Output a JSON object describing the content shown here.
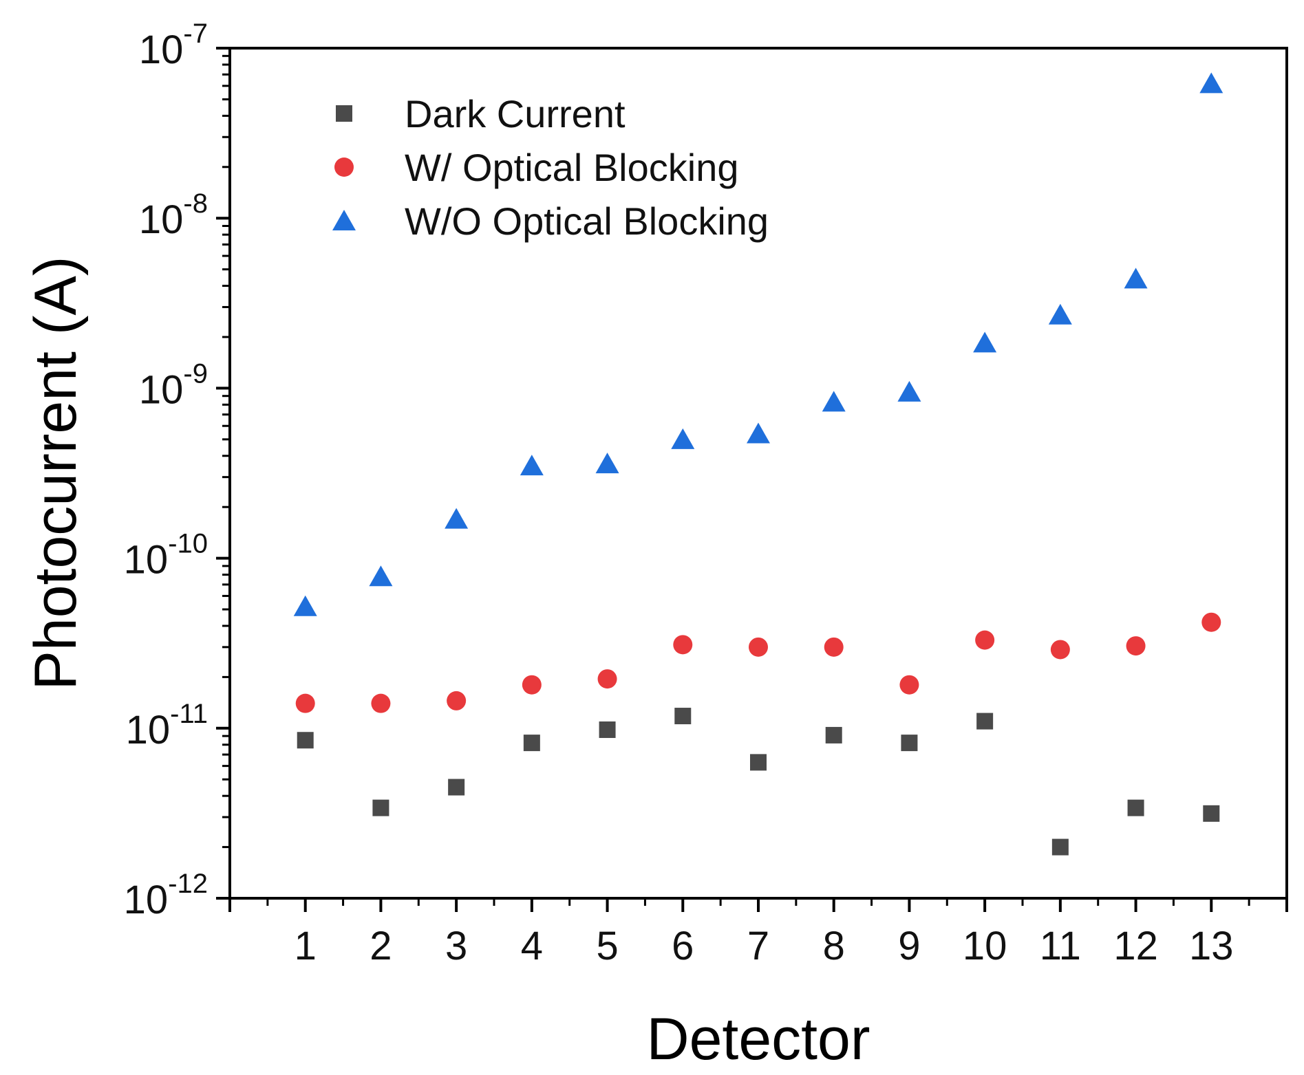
{
  "chart_data": {
    "type": "scatter",
    "title": "",
    "xlabel": "Detector",
    "ylabel": "Photocurrent (A)",
    "yscale": "log",
    "ylim": [
      1e-12,
      1e-07
    ],
    "xlim": [
      0,
      14
    ],
    "x": [
      1,
      2,
      3,
      4,
      5,
      6,
      7,
      8,
      9,
      10,
      11,
      12,
      13
    ],
    "x_tick_labels": [
      "1",
      "2",
      "3",
      "4",
      "5",
      "6",
      "7",
      "8",
      "9",
      "10",
      "11",
      "12",
      "13"
    ],
    "y_ticks": [
      {
        "value": 1e-12,
        "base": "10",
        "exp": "-12"
      },
      {
        "value": 1e-11,
        "base": "10",
        "exp": "-11"
      },
      {
        "value": 1e-10,
        "base": "10",
        "exp": "-10"
      },
      {
        "value": 1e-09,
        "base": "10",
        "exp": "-9"
      },
      {
        "value": 1e-08,
        "base": "10",
        "exp": "-8"
      },
      {
        "value": 1e-07,
        "base": "10",
        "exp": "-7"
      }
    ],
    "legend_position": "top-left",
    "series": [
      {
        "name": "Dark Current",
        "marker": "square",
        "color": "#4a4a4a",
        "values": [
          8.5e-12,
          3.4e-12,
          4.5e-12,
          8.2e-12,
          9.8e-12,
          1.18e-11,
          6.3e-12,
          9.1e-12,
          8.2e-12,
          1.1e-11,
          2e-12,
          3.4e-12,
          3.15e-12
        ]
      },
      {
        "name": "W/ Optical Blocking",
        "marker": "circle",
        "color": "#e8393c",
        "values": [
          1.4e-11,
          1.4e-11,
          1.45e-11,
          1.8e-11,
          1.95e-11,
          3.1e-11,
          3e-11,
          3e-11,
          1.8e-11,
          3.3e-11,
          2.9e-11,
          3.05e-11,
          4.2e-11
        ]
      },
      {
        "name": "W/O Optical Blocking",
        "marker": "triangle",
        "color": "#1f6fdb",
        "values": [
          5.2e-11,
          7.8e-11,
          1.7e-10,
          3.5e-10,
          3.6e-10,
          5e-10,
          5.4e-10,
          8.3e-10,
          9.5e-10,
          1.85e-09,
          2.7e-09,
          4.4e-09,
          6.2e-08
        ]
      }
    ]
  }
}
